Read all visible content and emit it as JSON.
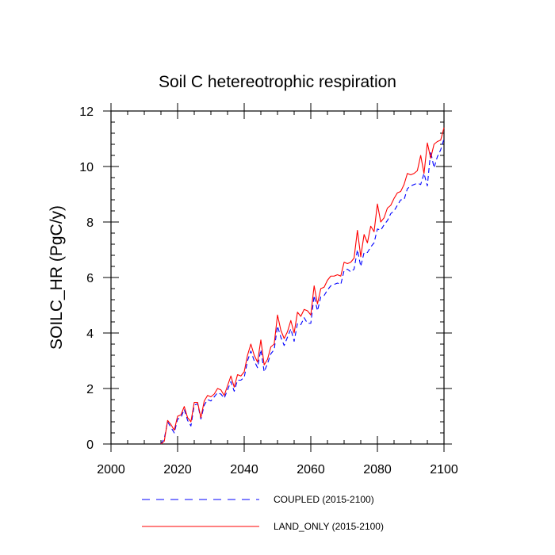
{
  "chart_data": {
    "type": "line",
    "title": "Soil C hetereotrophic respiration",
    "xlabel": "",
    "ylabel": "SOILC_HR  (PgC/y)",
    "xlim": [
      2000,
      2100
    ],
    "ylim": [
      0,
      12
    ],
    "x_ticks": [
      2000,
      2020,
      2040,
      2060,
      2080,
      2100
    ],
    "y_ticks": [
      0,
      2,
      4,
      6,
      8,
      10,
      12
    ],
    "x_tick_labels": [
      "2000",
      "2020",
      "2040",
      "2060",
      "2080",
      "2100"
    ],
    "y_tick_labels": [
      "0",
      "2",
      "4",
      "6",
      "8",
      "10",
      "12"
    ],
    "legend": {
      "placement": "bottom"
    },
    "series": [
      {
        "name": "COUPLED (2015-2100)",
        "color": "#0000ff",
        "style": "dashed",
        "x": [
          2015,
          2016,
          2017,
          2018,
          2019,
          2020,
          2021,
          2022,
          2023,
          2024,
          2025,
          2026,
          2027,
          2028,
          2029,
          2030,
          2031,
          2032,
          2033,
          2034,
          2035,
          2036,
          2037,
          2038,
          2039,
          2040,
          2041,
          2042,
          2043,
          2044,
          2045,
          2046,
          2047,
          2048,
          2049,
          2050,
          2051,
          2052,
          2053,
          2054,
          2055,
          2056,
          2057,
          2058,
          2059,
          2060,
          2061,
          2062,
          2063,
          2064,
          2065,
          2066,
          2067,
          2068,
          2069,
          2070,
          2071,
          2072,
          2073,
          2074,
          2075,
          2076,
          2077,
          2078,
          2079,
          2080,
          2081,
          2082,
          2083,
          2084,
          2085,
          2086,
          2087,
          2088,
          2089,
          2090,
          2091,
          2092,
          2093,
          2094,
          2095,
          2096,
          2097,
          2098,
          2099,
          2100
        ],
        "values": [
          0.0,
          0.2,
          0.8,
          0.6,
          0.4,
          0.9,
          0.95,
          1.25,
          0.85,
          0.65,
          1.4,
          1.45,
          0.9,
          1.4,
          1.6,
          1.55,
          1.7,
          1.85,
          1.8,
          1.65,
          1.95,
          2.25,
          1.9,
          2.3,
          2.3,
          2.4,
          3.0,
          3.35,
          3.0,
          2.75,
          3.4,
          2.6,
          2.9,
          3.25,
          3.4,
          4.25,
          3.85,
          3.55,
          3.85,
          4.15,
          3.7,
          4.35,
          4.3,
          4.55,
          4.35,
          4.35,
          5.35,
          4.8,
          5.3,
          5.35,
          5.55,
          5.7,
          5.75,
          5.8,
          5.75,
          6.25,
          6.3,
          6.2,
          6.3,
          7.0,
          6.4,
          6.9,
          6.9,
          7.1,
          7.25,
          7.75,
          7.7,
          7.9,
          8.05,
          8.3,
          8.4,
          8.6,
          8.8,
          8.8,
          9.2,
          9.3,
          9.35,
          9.4,
          9.35,
          9.75,
          9.3,
          10.55,
          9.95,
          10.35,
          10.6,
          11.0
        ]
      },
      {
        "name": "LAND_ONLY (2015-2100)",
        "color": "#ff0000",
        "style": "solid",
        "x": [
          2015,
          2016,
          2017,
          2018,
          2019,
          2020,
          2021,
          2022,
          2023,
          2024,
          2025,
          2026,
          2027,
          2028,
          2029,
          2030,
          2031,
          2032,
          2033,
          2034,
          2035,
          2036,
          2037,
          2038,
          2039,
          2040,
          2041,
          2042,
          2043,
          2044,
          2045,
          2046,
          2047,
          2048,
          2049,
          2050,
          2051,
          2052,
          2053,
          2054,
          2055,
          2056,
          2057,
          2058,
          2059,
          2060,
          2061,
          2062,
          2063,
          2064,
          2065,
          2066,
          2067,
          2068,
          2069,
          2070,
          2071,
          2072,
          2073,
          2074,
          2075,
          2076,
          2077,
          2078,
          2079,
          2080,
          2081,
          2082,
          2083,
          2084,
          2085,
          2086,
          2087,
          2088,
          2089,
          2090,
          2091,
          2092,
          2093,
          2094,
          2095,
          2096,
          2097,
          2098,
          2099,
          2100
        ],
        "values": [
          0.0,
          0.1,
          0.85,
          0.7,
          0.5,
          1.0,
          1.05,
          1.35,
          0.95,
          0.8,
          1.5,
          1.5,
          0.95,
          1.55,
          1.75,
          1.7,
          1.8,
          2.0,
          1.95,
          1.75,
          2.1,
          2.45,
          2.05,
          2.5,
          2.45,
          2.6,
          3.2,
          3.6,
          3.2,
          2.95,
          3.75,
          2.85,
          3.05,
          3.5,
          3.6,
          4.65,
          4.1,
          3.8,
          4.05,
          4.45,
          4.0,
          4.75,
          4.6,
          4.85,
          4.8,
          4.65,
          5.7,
          5.05,
          5.6,
          5.65,
          5.9,
          6.05,
          6.05,
          6.1,
          6.05,
          6.55,
          6.5,
          6.55,
          6.7,
          7.7,
          6.75,
          7.55,
          7.25,
          7.85,
          7.65,
          8.65,
          8.0,
          8.15,
          8.5,
          8.6,
          8.85,
          9.05,
          9.1,
          9.35,
          9.75,
          9.7,
          9.75,
          9.85,
          10.4,
          9.75,
          10.85,
          10.3,
          10.8,
          10.9,
          10.95,
          11.4
        ]
      }
    ]
  }
}
